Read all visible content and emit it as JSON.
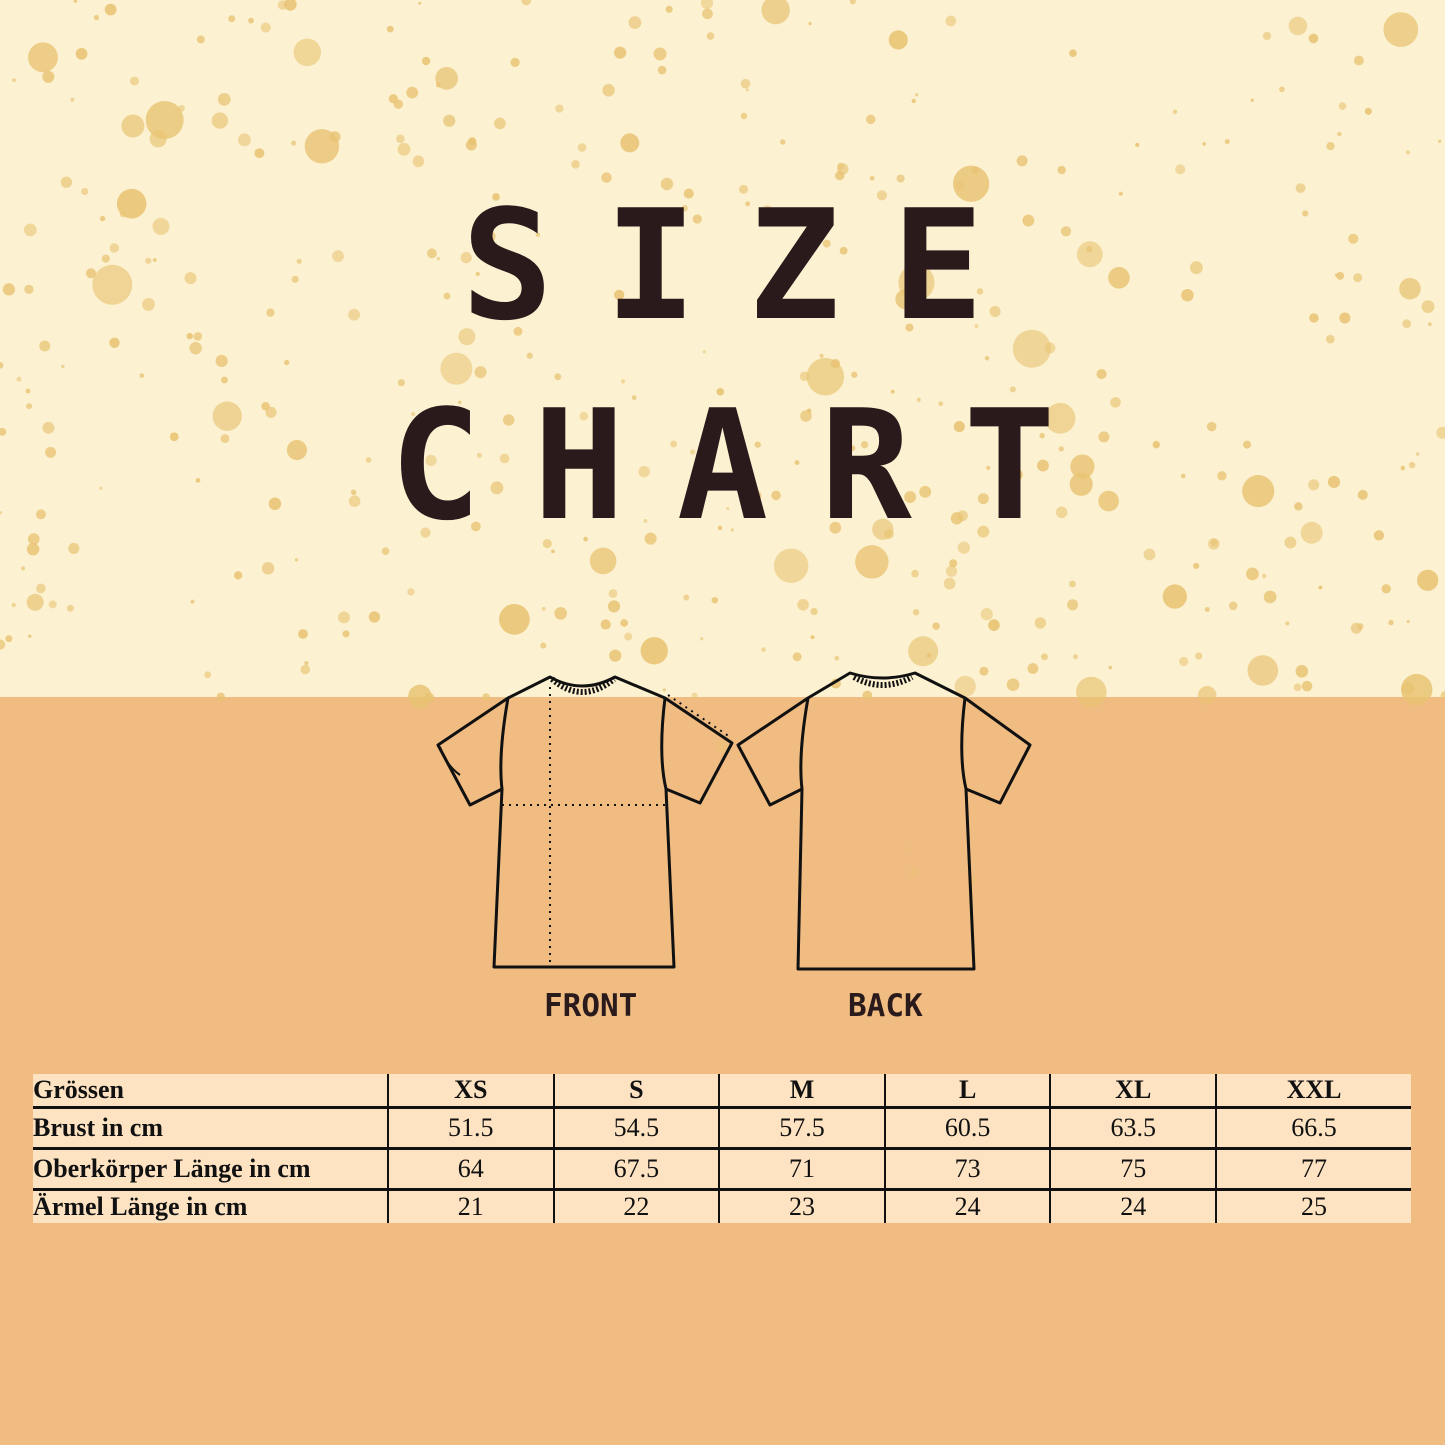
{
  "title": {
    "line1": "SIZE",
    "line2": "CHART"
  },
  "views": {
    "front": "FRONT",
    "back": "BACK"
  },
  "colors": {
    "top_background": "#fcf1d0",
    "bottom_background": "#f0bc82",
    "splatter": "#e8c373",
    "text": "#2a1a1c",
    "table_background": "#fde3c2"
  },
  "table": {
    "header": [
      "Grössen",
      "XS",
      "S",
      "M",
      "L",
      "XL",
      "XXL"
    ],
    "rows": [
      [
        "Brust in cm",
        "51.5",
        "54.5",
        "57.5",
        "60.5",
        "63.5",
        "66.5"
      ],
      [
        "Oberkörper Länge in cm",
        "64",
        "67.5",
        "71",
        "73",
        "75",
        "77"
      ],
      [
        "Ärmel Länge in cm",
        "21",
        "22",
        "23",
        "24",
        "24",
        "25"
      ]
    ]
  }
}
